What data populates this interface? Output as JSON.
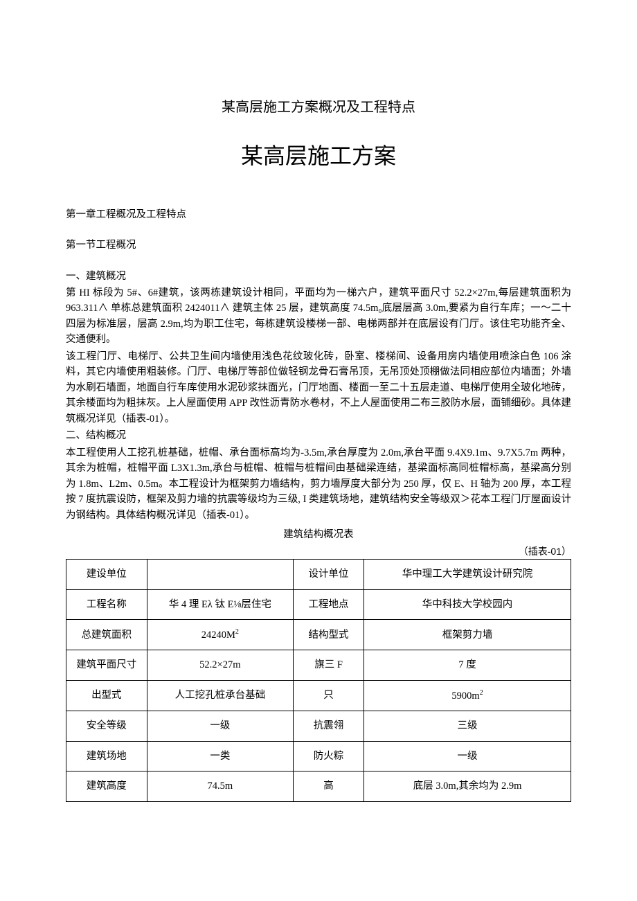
{
  "subtitle": "某高层施工方案概况及工程特点",
  "main_title": "某高层施工方案",
  "chapter": "第一章工程概况及工程特点",
  "section": "第一节工程概况",
  "s1": {
    "heading": "一、建筑概况",
    "p1": "第 HI 标段为 5#、6#建筑，该两栋建筑设计相同，平面均为一梯六户，建筑平面尺寸 52.2×27m,每层建筑面积为 963.311∧ 单栋总建筑面积 2424011∧ 建筑主体 25 层，建筑高度 74.5m₀底层层高 3.0m,要紧为自行车库；一～二十四层为标准层，层高 2.9m,均为职工住宅，每栋建筑设楼梯一部、电梯两部并在底层设有门厅。该住宅功能齐全、交通便利。",
    "p2": "该工程门厅、电梯厅、公共卫生间内墙使用浅色花纹玻化砖，卧室、楼梯间、设备用房内墙使用喷涂白色 106 涂料，其它内墙使用粗装修。门厅、电梯厅等部位做轻钢龙骨石膏吊顶，无吊顶处顶棚做法同相应部位内墙面；外墙为水刷石墙面，地面自行车库使用水泥砂浆抹面光，门厅地面、楼面一至二十五层走道、电梯厅使用全玻化地砖，其余楼面均为粗抹灰。上人屋面使用 APP 改性沥青防水卷材，不上人屋面使用二布三胶防水层，面铺细砂。具体建筑概况详见（插表-01）。"
  },
  "s2": {
    "heading": "二、结构概况",
    "p1": "本工程使用人工挖孔桩基础，桩帽、承台面标高均为-3.5m,承台厚度为 2.0m,承台平面 9.4X9.1m、9.7X5.7m 两种，其余为桩帽，桩帽平面 L3X1.3m,承台与桩帽、桩帽与桩帽间由基础梁连结，基梁面标高同桩帽标高，基梁高分别为 1.8m、L2m、0.5m。本工程设计为框架剪力墙结构，剪力墙厚度大部分为 250 厚，仅 E、H 轴为 200 厚，本工程按 7 度抗震设防，框架及剪力墙的抗震等级均为三级, I 类建筑场地，建筑结构安全等级双＞花本工程门厅屋面设计为钢结构。具体结构概况详见（插表-01）。"
  },
  "table": {
    "title": "建筑结构概况表",
    "note": "（插表-01）",
    "rows": [
      [
        "建设单位",
        "",
        "设计单位",
        "华中理工大学建筑设计研究院"
      ],
      [
        "工程名称",
        "华 4 理 Eλ 钛 E⅛层住宅",
        "工程地点",
        "华中科技大学校园内"
      ],
      [
        "总建筑面积",
        "24240M²",
        "结构型式",
        "框架剪力墙"
      ],
      [
        "建筑平面尺寸",
        "52.2×27m",
        "旗三 F",
        "7 度"
      ],
      [
        "出型式",
        "人工挖孔桩承台基础",
        "只",
        "5900m²"
      ],
      [
        "安全等级",
        "一级",
        "抗震翎",
        "三级"
      ],
      [
        "建筑场地",
        "一类",
        "防火粽",
        "一级"
      ],
      [
        "建筑高度",
        "74.5m",
        "高",
        "底层 3.0m,其余均为 2.9m"
      ]
    ]
  },
  "style": {
    "text_color": "#000000",
    "background": "#ffffff",
    "border_color": "#000000",
    "body_fontsize": 14.5,
    "subtitle_fontsize": 20,
    "title_fontsize": 32
  }
}
